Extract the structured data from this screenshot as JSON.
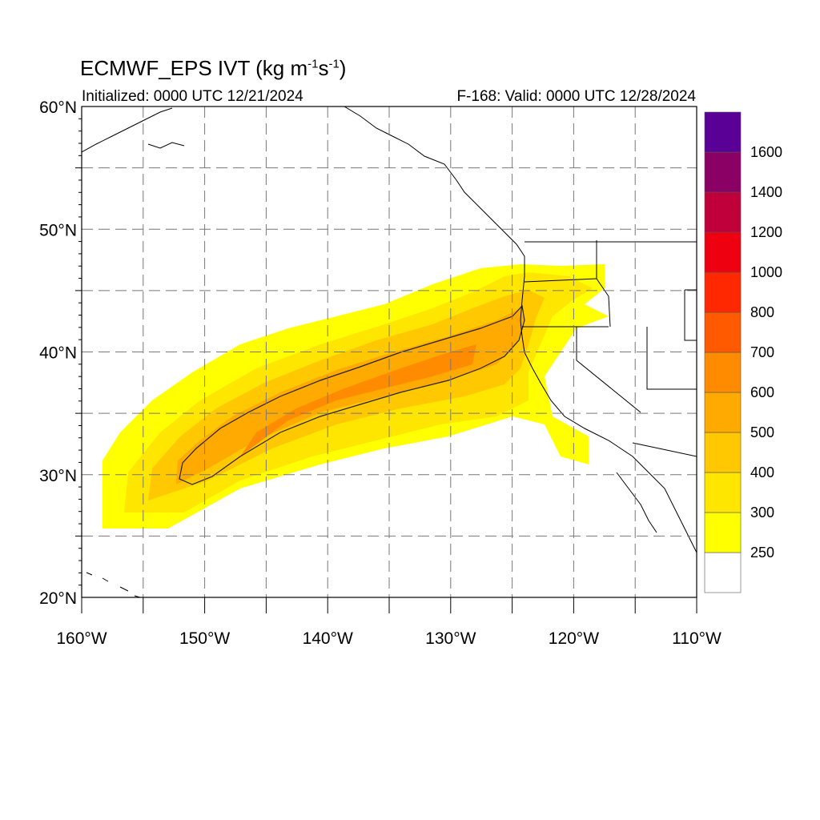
{
  "title": {
    "main": "ECMWF_EPS IVT (kg m",
    "exp1": "-1",
    "mid": "s",
    "exp2": "-1",
    "end": ")"
  },
  "initialized": "Initialized: 0000 UTC 12/21/2024",
  "valid": "F-168: Valid: 0000 UTC 12/28/2024",
  "map": {
    "lon_range": [
      -160,
      -110
    ],
    "lat_range": [
      20,
      60
    ],
    "grid": "dashed every 5°",
    "lat_labels": [
      {
        "lat": 60,
        "text": "60°N"
      },
      {
        "lat": 50,
        "text": "50°N"
      },
      {
        "lat": 40,
        "text": "40°N"
      },
      {
        "lat": 30,
        "text": "30°N"
      },
      {
        "lat": 20,
        "text": "20°N"
      }
    ],
    "lon_labels": [
      {
        "lon": -160,
        "text": "160°W"
      },
      {
        "lon": -150,
        "text": "150°W"
      },
      {
        "lon": -140,
        "text": "140°W"
      },
      {
        "lon": -130,
        "text": "130°W"
      },
      {
        "lon": -120,
        "text": "120°W"
      },
      {
        "lon": -110,
        "text": "110°W"
      }
    ]
  },
  "colorbar": {
    "levels": [
      250,
      300,
      400,
      500,
      600,
      700,
      800,
      1000,
      1200,
      1400,
      1600
    ],
    "labels": [
      "250",
      "300",
      "400",
      "500",
      "600",
      "700",
      "800",
      "1000",
      "1200",
      "1400",
      "1600"
    ],
    "colors": [
      "#ffffff",
      "#ffff00",
      "#ffe600",
      "#ffc800",
      "#ffaa00",
      "#ff8c00",
      "#ff5a00",
      "#ff2800",
      "#ee0010",
      "#c0003a",
      "#8a0064",
      "#5a0096"
    ]
  },
  "ivt_bands": [
    {
      "level": 250,
      "color": "#ffff00"
    },
    {
      "level": 300,
      "color": "#ffe600"
    },
    {
      "level": 400,
      "color": "#ffc800"
    },
    {
      "level": 500,
      "color": "#ffaa00"
    },
    {
      "level": 600,
      "color": "#ff8c00"
    }
  ]
}
